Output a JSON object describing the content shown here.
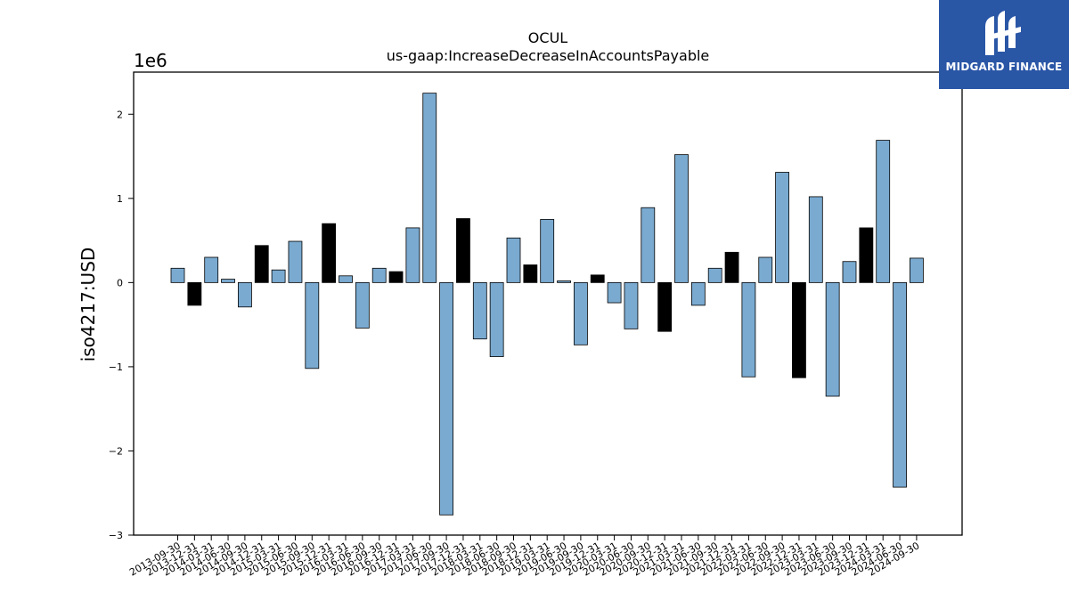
{
  "brand": {
    "name": "MIDGARD FINANCE",
    "icon": "midgard-logo-icon",
    "color": "#2a56a6"
  },
  "chart_data": {
    "type": "bar",
    "title": "OCUL",
    "subtitle": "us-gaap:IncreaseDecreaseInAccountsPayable",
    "ylabel": "iso4217:USD",
    "xlabel": "",
    "y_multiplier_label": "1e6",
    "ylim": [
      -3000000,
      2500000
    ],
    "yticks": [
      -3000000,
      -2000000,
      -1000000,
      0,
      1000000,
      2000000
    ],
    "ytick_labels": [
      "−3",
      "−2",
      "−1",
      "0",
      "1",
      "2"
    ],
    "grid": false,
    "colors": {
      "quarter": "#7aaad0",
      "fiscal_q4": "#000000"
    },
    "categories": [
      "2013-09-30",
      "2013-12-31",
      "2014-03-31",
      "2014-06-30",
      "2014-09-30",
      "2014-12-31",
      "2015-03-31",
      "2015-06-30",
      "2015-09-30",
      "2015-12-31",
      "2016-03-31",
      "2016-06-30",
      "2016-09-30",
      "2016-12-31",
      "2017-03-31",
      "2017-06-30",
      "2017-09-30",
      "2017-12-31",
      "2018-03-31",
      "2018-06-30",
      "2018-09-30",
      "2018-12-31",
      "2019-03-31",
      "2019-06-30",
      "2019-09-30",
      "2019-12-31",
      "2020-03-31",
      "2020-06-30",
      "2020-09-30",
      "2020-12-31",
      "2021-03-31",
      "2021-06-30",
      "2021-09-30",
      "2021-12-31",
      "2022-03-31",
      "2022-06-30",
      "2022-09-30",
      "2022-12-31",
      "2023-03-31",
      "2023-06-30",
      "2023-09-30",
      "2023-12-31",
      "2024-03-31",
      "2024-06-30",
      "2024-09-30"
    ],
    "values": [
      170000,
      -270000,
      300000,
      40000,
      -290000,
      440000,
      150000,
      490000,
      -1020000,
      700000,
      80000,
      -540000,
      170000,
      130000,
      650000,
      2250000,
      -2760000,
      760000,
      -670000,
      -880000,
      530000,
      210000,
      750000,
      20000,
      -740000,
      90000,
      -240000,
      -550000,
      890000,
      -580000,
      1520000,
      -270000,
      170000,
      360000,
      -1120000,
      300000,
      1310000,
      -1130000,
      1020000,
      -1350000,
      250000,
      650000,
      1690000,
      -2430000,
      290000
    ],
    "highlight": [
      false,
      true,
      false,
      false,
      false,
      true,
      false,
      false,
      false,
      true,
      false,
      false,
      false,
      true,
      false,
      false,
      false,
      true,
      false,
      false,
      false,
      true,
      false,
      false,
      false,
      true,
      false,
      false,
      false,
      true,
      false,
      false,
      false,
      true,
      false,
      false,
      false,
      true,
      false,
      false,
      false,
      true,
      false,
      false,
      false
    ]
  }
}
